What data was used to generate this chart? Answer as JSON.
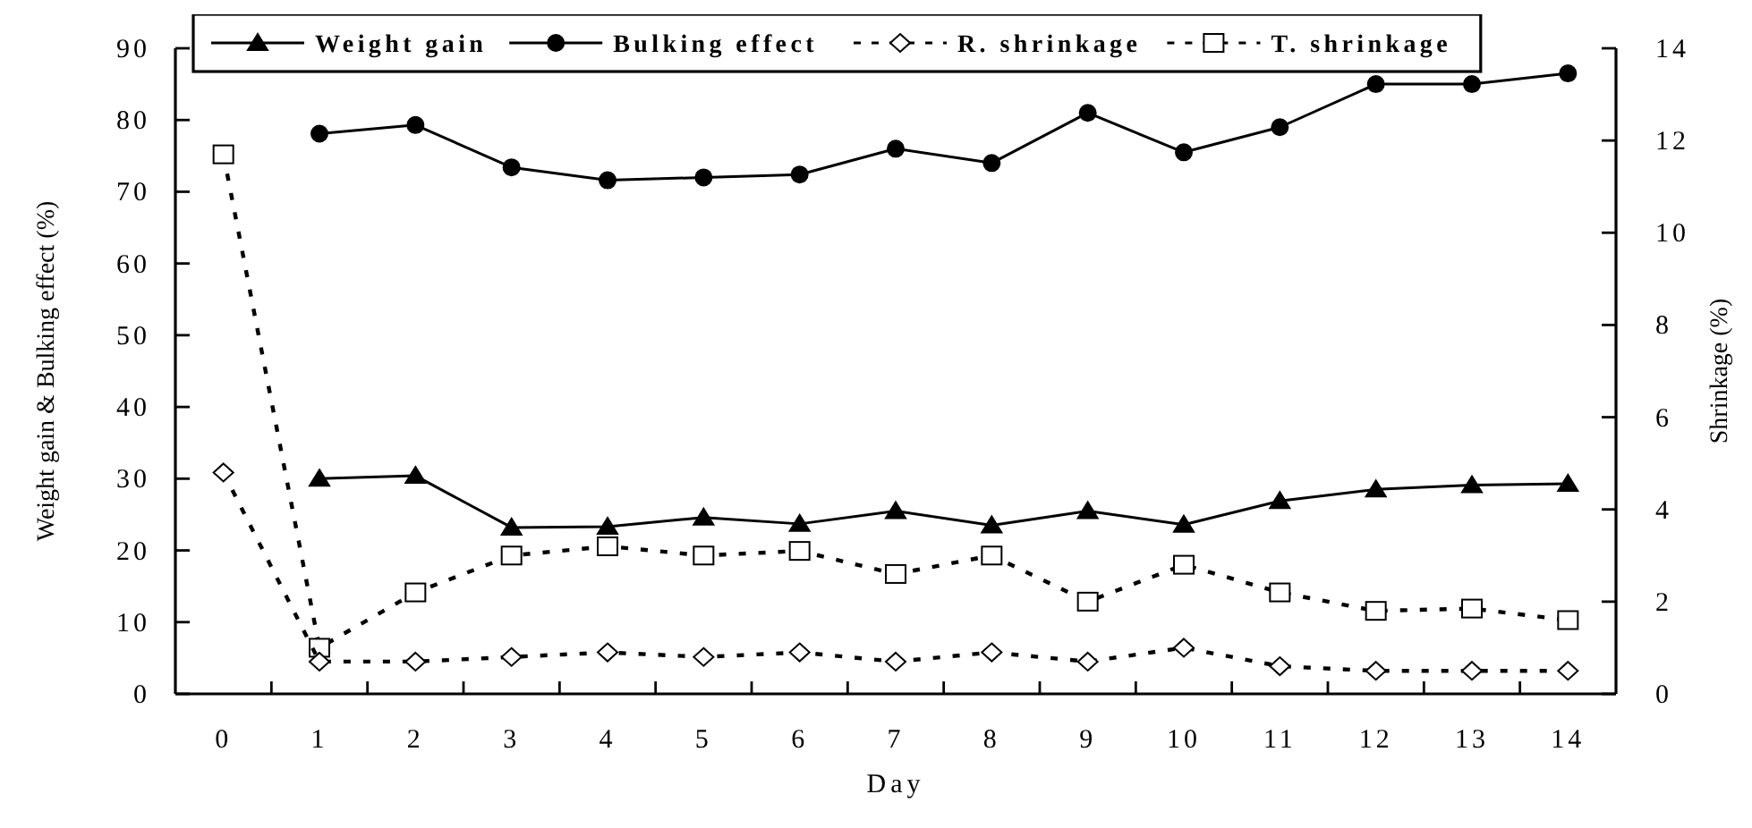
{
  "chart_data": {
    "type": "line",
    "xlabel": "Day",
    "ylabel": "Weight gain & Bulking effect (%)",
    "y2label": "Shrinkage (%)",
    "categories": [
      "0",
      "1",
      "2",
      "3",
      "4",
      "5",
      "6",
      "7",
      "8",
      "9",
      "10",
      "11",
      "12",
      "13",
      "14"
    ],
    "ylim": [
      0,
      90
    ],
    "yticks": [
      0,
      10,
      20,
      30,
      40,
      50,
      60,
      70,
      80,
      90
    ],
    "y2lim": [
      0,
      14
    ],
    "y2ticks": [
      0,
      2,
      4,
      6,
      8,
      10,
      12,
      14
    ],
    "legend": "top",
    "grid": false,
    "series": [
      {
        "name": "Weight gain",
        "color": "#000000",
        "marker": "triangle",
        "line_style": "solid",
        "values": [
          null,
          30.0,
          30.4,
          23.2,
          23.3,
          24.6,
          23.7,
          25.5,
          23.5,
          25.5,
          23.6,
          26.9,
          28.5,
          29.1,
          29.3
        ]
      },
      {
        "name": "Bulking effect",
        "color": "#000000",
        "marker": "circle",
        "line_style": "solid",
        "values": [
          null,
          78.1,
          79.3,
          73.4,
          71.6,
          72.0,
          72.4,
          76.0,
          74.0,
          81.0,
          75.5,
          79.0,
          85.0,
          85.0,
          86.5
        ]
      },
      {
        "name": "R. shrinkage",
        "color": "#000000",
        "marker": "diamond",
        "line_style": "dashed",
        "axis": "y2",
        "values": [
          4.8,
          0.7,
          0.7,
          0.8,
          0.9,
          0.8,
          0.9,
          0.7,
          0.9,
          0.7,
          1.0,
          0.6,
          0.5,
          0.5,
          0.5
        ]
      },
      {
        "name": "T. shrinkage",
        "color": "#000000",
        "marker": "square",
        "line_style": "dashed",
        "axis": "y2",
        "values": [
          11.7,
          1.0,
          2.2,
          3.0,
          3.2,
          3.0,
          3.1,
          2.6,
          3.0,
          2.0,
          2.8,
          2.2,
          1.8,
          1.85,
          1.6
        ]
      }
    ]
  }
}
